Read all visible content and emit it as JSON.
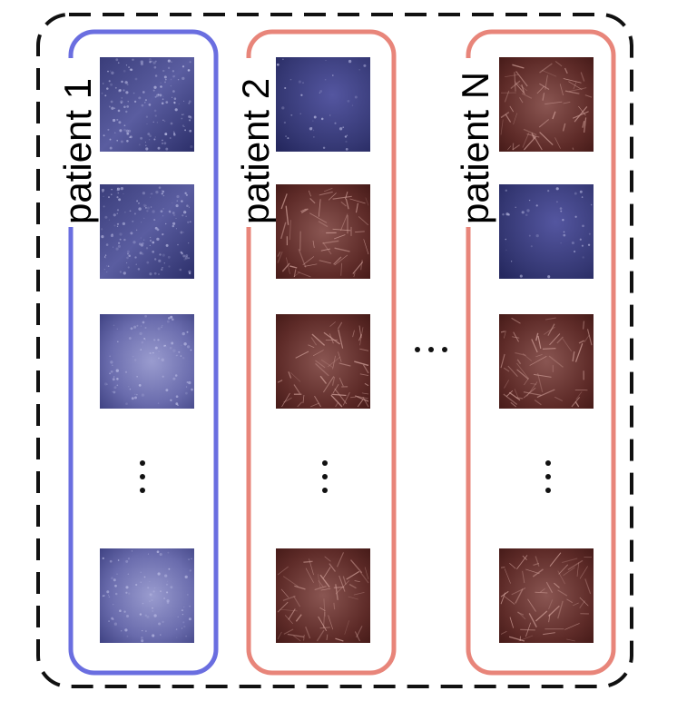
{
  "colors": {
    "background": "#ffffff",
    "outer_border": "#111111",
    "patient_1_border": "#6a6ee0",
    "patient_other_border": "#e8857a",
    "dots": "#111111",
    "tile_blue_base": "#2c2f6a",
    "tile_blue_highlight": "#9a9ccf",
    "tile_red_base": "#4a1a18",
    "tile_red_highlight": "#c99a94"
  },
  "groups": [
    {
      "id": "patient-1",
      "label": "patient 1",
      "border_color": "#6a6ee0",
      "tiles": [
        {
          "stain": "blue",
          "texture": "speckled"
        },
        {
          "stain": "blue",
          "texture": "speckled"
        },
        {
          "stain": "blue",
          "texture": "smooth-light"
        },
        {
          "stain": "blue",
          "texture": "smooth-light"
        }
      ]
    },
    {
      "id": "patient-2",
      "label": "patient 2",
      "border_color": "#e8857a",
      "tiles": [
        {
          "stain": "blue",
          "texture": "smooth-dark"
        },
        {
          "stain": "red",
          "texture": "fibrous"
        },
        {
          "stain": "red",
          "texture": "fibrous"
        },
        {
          "stain": "red",
          "texture": "fibrous"
        }
      ]
    },
    {
      "id": "patient-n",
      "label": "patient N",
      "border_color": "#e8857a",
      "tiles": [
        {
          "stain": "red",
          "texture": "fibrous"
        },
        {
          "stain": "blue",
          "texture": "smooth-dark"
        },
        {
          "stain": "red",
          "texture": "fibrous"
        },
        {
          "stain": "red",
          "texture": "fibrous"
        }
      ]
    }
  ],
  "ellipsis": {
    "vertical_in_each_group": true,
    "horizontal_between_groups": true
  }
}
